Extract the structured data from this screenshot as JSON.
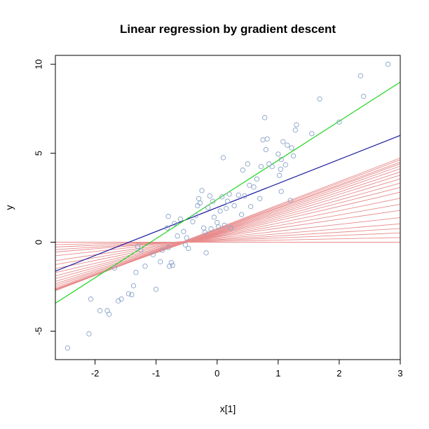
{
  "chart_data": {
    "type": "scatter",
    "title": "Linear regression by gradient descent",
    "xlabel": "x[1]",
    "ylabel": "y",
    "xlim": [
      -2.65,
      3.0
    ],
    "ylim": [
      -6.6,
      10.5
    ],
    "x_ticks": [
      -2,
      -1,
      0,
      1,
      2,
      3
    ],
    "y_ticks": [
      -5,
      0,
      5,
      10
    ],
    "grid": false,
    "legend": "none",
    "colors": {
      "points": "#8aa3c8",
      "gd_path": "#e88b8b",
      "final_fit": "#1b1b9e",
      "true_line": "#1fd41f"
    },
    "points": [
      {
        "x": -2.45,
        "y": -5.95
      },
      {
        "x": -2.1,
        "y": -5.15
      },
      {
        "x": -2.07,
        "y": -3.2
      },
      {
        "x": -1.92,
        "y": -3.85
      },
      {
        "x": -1.8,
        "y": -3.85
      },
      {
        "x": -1.77,
        "y": -4.05
      },
      {
        "x": -1.68,
        "y": -1.45
      },
      {
        "x": -1.62,
        "y": -3.3
      },
      {
        "x": -1.57,
        "y": -3.2
      },
      {
        "x": -1.45,
        "y": -2.9
      },
      {
        "x": -1.4,
        "y": -2.95
      },
      {
        "x": -1.37,
        "y": -2.45
      },
      {
        "x": -1.33,
        "y": -1.7
      },
      {
        "x": -1.3,
        "y": -0.25
      },
      {
        "x": -1.25,
        "y": -0.45
      },
      {
        "x": -1.18,
        "y": -1.35
      },
      {
        "x": -1.05,
        "y": -0.7
      },
      {
        "x": -1.0,
        "y": -2.65
      },
      {
        "x": -0.93,
        "y": -1.1
      },
      {
        "x": -0.9,
        "y": -0.45
      },
      {
        "x": -0.82,
        "y": 0.8
      },
      {
        "x": -0.8,
        "y": -0.3
      },
      {
        "x": -0.8,
        "y": 1.45
      },
      {
        "x": -0.78,
        "y": -1.35
      },
      {
        "x": -0.75,
        "y": -1.15
      },
      {
        "x": -0.73,
        "y": -1.3
      },
      {
        "x": -0.7,
        "y": 1.05
      },
      {
        "x": -0.65,
        "y": 0.35
      },
      {
        "x": -0.6,
        "y": 1.3
      },
      {
        "x": -0.55,
        "y": 0.6
      },
      {
        "x": -0.52,
        "y": -0.15
      },
      {
        "x": -0.5,
        "y": 0.25
      },
      {
        "x": -0.47,
        "y": -0.35
      },
      {
        "x": -0.4,
        "y": 1.15
      },
      {
        "x": -0.35,
        "y": 1.5
      },
      {
        "x": -0.32,
        "y": 2.05
      },
      {
        "x": -0.3,
        "y": 2.45
      },
      {
        "x": -0.28,
        "y": 2.2
      },
      {
        "x": -0.25,
        "y": 2.9
      },
      {
        "x": -0.22,
        "y": 0.8
      },
      {
        "x": -0.2,
        "y": 0.55
      },
      {
        "x": -0.18,
        "y": -0.6
      },
      {
        "x": -0.15,
        "y": 1.95
      },
      {
        "x": -0.12,
        "y": 2.6
      },
      {
        "x": -0.1,
        "y": 0.75
      },
      {
        "x": -0.07,
        "y": 2.3
      },
      {
        "x": -0.05,
        "y": 1.4
      },
      {
        "x": 0.0,
        "y": 1.1
      },
      {
        "x": 0.02,
        "y": 0.85
      },
      {
        "x": 0.05,
        "y": 1.75
      },
      {
        "x": 0.08,
        "y": 2.55
      },
      {
        "x": 0.1,
        "y": 4.75
      },
      {
        "x": 0.12,
        "y": 0.95
      },
      {
        "x": 0.15,
        "y": 1.9
      },
      {
        "x": 0.17,
        "y": 2.3
      },
      {
        "x": 0.2,
        "y": 2.7
      },
      {
        "x": 0.22,
        "y": 0.8
      },
      {
        "x": 0.28,
        "y": 2.05
      },
      {
        "x": 0.35,
        "y": 2.65
      },
      {
        "x": 0.4,
        "y": 1.55
      },
      {
        "x": 0.42,
        "y": 4.05
      },
      {
        "x": 0.45,
        "y": 2.6
      },
      {
        "x": 0.5,
        "y": 4.4
      },
      {
        "x": 0.53,
        "y": 3.2
      },
      {
        "x": 0.55,
        "y": 2.0
      },
      {
        "x": 0.6,
        "y": 3.1
      },
      {
        "x": 0.65,
        "y": 3.55
      },
      {
        "x": 0.7,
        "y": 2.45
      },
      {
        "x": 0.72,
        "y": 4.25
      },
      {
        "x": 0.75,
        "y": 5.75
      },
      {
        "x": 0.78,
        "y": 7.0
      },
      {
        "x": 0.8,
        "y": 5.2
      },
      {
        "x": 0.82,
        "y": 5.8
      },
      {
        "x": 0.85,
        "y": 4.4
      },
      {
        "x": 0.9,
        "y": 4.25
      },
      {
        "x": 1.0,
        "y": 4.95
      },
      {
        "x": 1.02,
        "y": 3.75
      },
      {
        "x": 1.04,
        "y": 4.1
      },
      {
        "x": 1.05,
        "y": 4.65
      },
      {
        "x": 1.05,
        "y": 2.85
      },
      {
        "x": 1.08,
        "y": 5.65
      },
      {
        "x": 1.12,
        "y": 4.35
      },
      {
        "x": 1.15,
        "y": 5.45
      },
      {
        "x": 1.2,
        "y": 2.35
      },
      {
        "x": 1.22,
        "y": 5.3
      },
      {
        "x": 1.25,
        "y": 4.85
      },
      {
        "x": 1.28,
        "y": 6.3
      },
      {
        "x": 1.3,
        "y": 6.6
      },
      {
        "x": 1.55,
        "y": 6.1
      },
      {
        "x": 1.68,
        "y": 8.05
      },
      {
        "x": 2.0,
        "y": 6.75
      },
      {
        "x": 2.35,
        "y": 9.35
      },
      {
        "x": 2.4,
        "y": 8.2
      },
      {
        "x": 2.8,
        "y": 10.0
      }
    ],
    "gd_lines": [
      {
        "intercept": 0.0,
        "slope": 0.0
      },
      {
        "intercept": 0.05,
        "slope": 0.07
      },
      {
        "intercept": 0.1,
        "slope": 0.14
      },
      {
        "intercept": 0.14,
        "slope": 0.21
      },
      {
        "intercept": 0.19,
        "slope": 0.28
      },
      {
        "intercept": 0.24,
        "slope": 0.38
      },
      {
        "intercept": 0.29,
        "slope": 0.5
      },
      {
        "intercept": 0.33,
        "slope": 0.6
      },
      {
        "intercept": 0.37,
        "slope": 0.7
      },
      {
        "intercept": 0.41,
        "slope": 0.8
      },
      {
        "intercept": 0.44,
        "slope": 0.88
      },
      {
        "intercept": 0.47,
        "slope": 0.95
      },
      {
        "intercept": 0.5,
        "slope": 1.02
      },
      {
        "intercept": 0.53,
        "slope": 1.08
      },
      {
        "intercept": 0.56,
        "slope": 1.13
      },
      {
        "intercept": 0.59,
        "slope": 1.18
      },
      {
        "intercept": 0.62,
        "slope": 1.22
      },
      {
        "intercept": 0.66,
        "slope": 1.25
      },
      {
        "intercept": 0.69,
        "slope": 1.27
      },
      {
        "intercept": 0.73,
        "slope": 1.3
      },
      {
        "intercept": 0.77,
        "slope": 1.32
      }
    ],
    "final_fit": {
      "intercept": 1.95,
      "slope": 1.35
    },
    "true_line": {
      "intercept": 2.4,
      "slope": 2.2
    }
  }
}
